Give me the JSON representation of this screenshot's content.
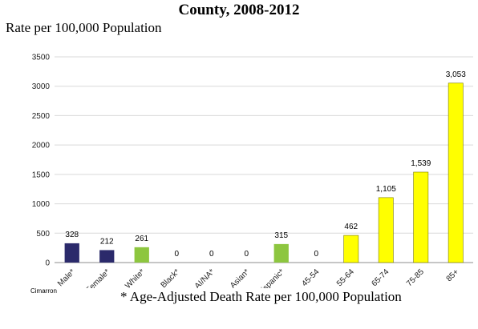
{
  "chart_data": {
    "type": "bar",
    "title": "County, 2008-2012",
    "ylabel": "Rate per 100,000 Population",
    "xlabel": "",
    "ylim": [
      0,
      3500
    ],
    "yticks": [
      "0",
      "500",
      "1000",
      "1500",
      "2000",
      "2500",
      "3000",
      "3500"
    ],
    "grid": true,
    "legend": "none",
    "categories": [
      "Male*",
      "Female*",
      "White*",
      "Black*",
      "AI/NA*",
      "Asian*",
      "Hispanic*",
      "45-54",
      "55-64",
      "65-74",
      "75-85",
      "85+"
    ],
    "values": [
      328,
      212,
      261,
      0,
      0,
      0,
      315,
      0,
      462,
      1105,
      1539,
      3053
    ],
    "data_labels": [
      "328",
      "212",
      "261",
      "0",
      "0",
      "0",
      "315",
      "0",
      "462",
      "1,105",
      "1,539",
      "3,053"
    ],
    "colors": [
      "#2b2a6b",
      "#2b2a6b",
      "#8dc63f",
      "#8dc63f",
      "#8dc63f",
      "#8dc63f",
      "#8dc63f",
      "#ffff00",
      "#ffff00",
      "#ffff00",
      "#ffff00",
      "#ffff00"
    ],
    "bar_outline": "#7a7a00",
    "gridline_color": "#d9d9d9"
  },
  "source_label": "Cimarron",
  "footnote": "* Age-Adjusted Death Rate per 100,000 Population"
}
